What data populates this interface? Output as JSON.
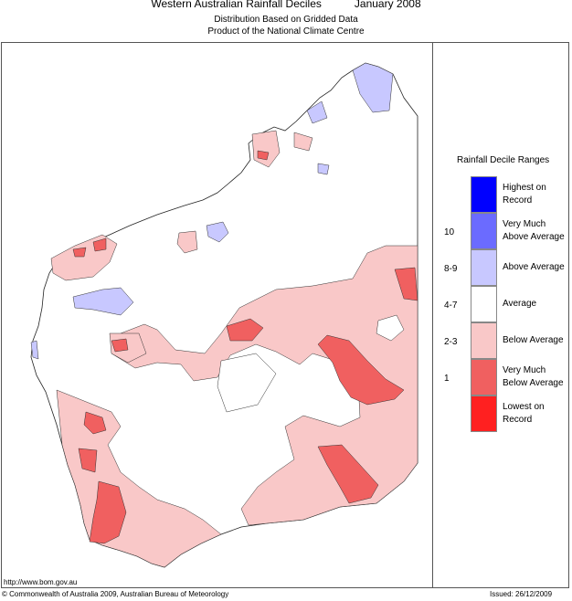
{
  "header": {
    "title": "Western Australian Rainfall Deciles",
    "period": "January 2008",
    "subtitle1": "Distribution Based on Gridded Data",
    "subtitle2": "Product of the National Climate Centre"
  },
  "legend": {
    "title": "Rainfall Decile Ranges",
    "items": [
      {
        "decile": "",
        "label": "Highest on Record",
        "color": "#0000ff"
      },
      {
        "decile": "10",
        "label": "Very Much Above Average",
        "color": "#6b6bff"
      },
      {
        "decile": "8-9",
        "label": "Above Average",
        "color": "#c8c8ff"
      },
      {
        "decile": "4-7",
        "label": "Average",
        "color": "#ffffff"
      },
      {
        "decile": "2-3",
        "label": "Below Average",
        "color": "#f9c8c8"
      },
      {
        "decile": "1",
        "label": "Very Much Below Average",
        "color": "#f06060"
      },
      {
        "decile": "",
        "label": "Lowest on Record",
        "color": "#ff2020"
      }
    ]
  },
  "footer": {
    "url": "http://www.bom.gov.au",
    "copyright": "© Commonwealth of Australia 2009, Australian Bureau of Meteorology",
    "issued": "Issued: 26/12/2009"
  }
}
